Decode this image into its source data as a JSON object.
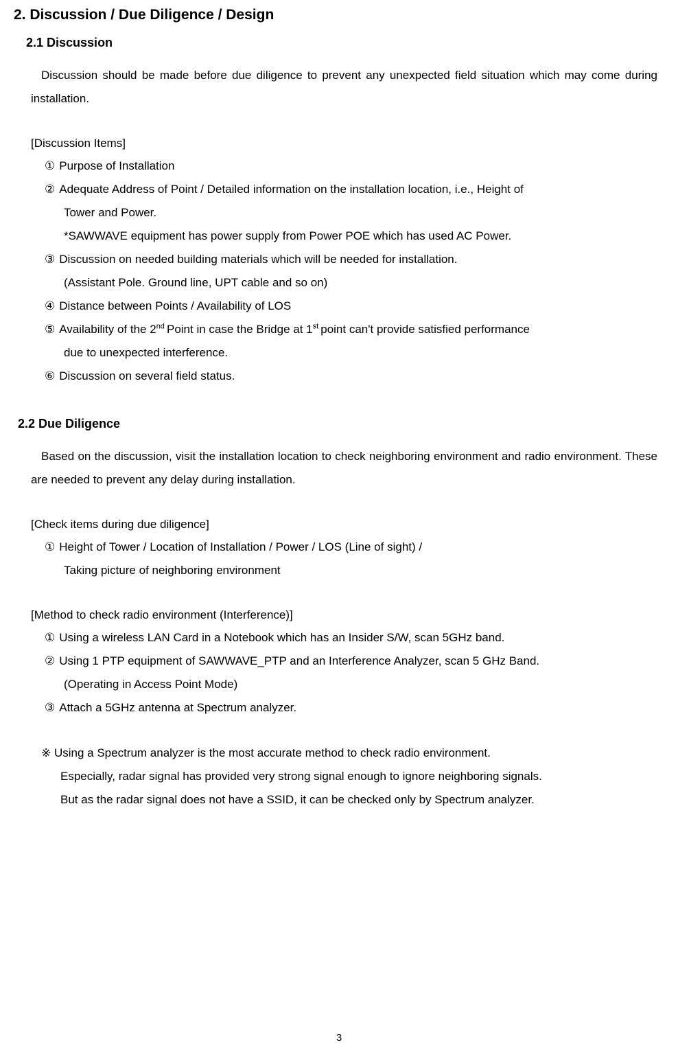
{
  "section": {
    "title": "2. Discussion / Due Diligence / Design"
  },
  "subsection1": {
    "title": "2.1 Discussion",
    "intro": "Discussion should be made before due diligence to prevent any unexpected field situation which may come during installation.",
    "list_heading": "[Discussion Items]",
    "items": {
      "m1": "①",
      "i1": "Purpose of Installation",
      "m2": "②",
      "i2": "Adequate Address of Point / Detailed information on the installation location, i.e., Height of",
      "i2b": "Tower and Power.",
      "i2c": "*SAWWAVE equipment has power supply from Power POE which has used AC Power.",
      "m3": "③",
      "i3": "Discussion on needed building materials which will be needed for installation.",
      "i3b": "(Assistant Pole. Ground line, UPT cable and so on)",
      "m4": "④",
      "i4": "Distance between Points / Availability of LOS",
      "m5": "⑤",
      "i5a": "Availability of the 2",
      "i5sup1": "nd ",
      "i5b": "Point in case the Bridge at 1",
      "i5sup2": "st ",
      "i5c": "point can't provide satisfied performance",
      "i5d": "due to unexpected interference.",
      "m6": "⑥",
      "i6": "Discussion on several field status."
    }
  },
  "subsection2": {
    "title": "2.2 Due Diligence",
    "intro": "Based on the discussion, visit the installation location to check neighboring environment and radio environment. These are needed to prevent any delay during installation.",
    "check_heading": "[Check items during due diligence]",
    "check": {
      "m1": "①",
      "c1": "Height of Tower / Location of Installation / Power / LOS (Line of sight) /",
      "c1b": "Taking picture of neighboring environment"
    },
    "method_heading": "[Method to check radio environment (Interference)]",
    "method": {
      "m1": "①",
      "r1": "Using a wireless LAN Card in a Notebook which has an Insider S/W, scan 5GHz band.",
      "m2": "②",
      "r2": "Using 1 PTP equipment of SAWWAVE_PTP and an Interference Analyzer, scan 5 GHz Band.",
      "r2b": "(Operating in Access Point Mode)",
      "m3": "③",
      "r3": "Attach a 5GHz antenna at Spectrum analyzer."
    },
    "note": {
      "n1": "※ Using a Spectrum analyzer is the most accurate method to check radio environment.",
      "n2": "Especially, radar signal has provided very strong signal enough to ignore neighboring signals.",
      "n3": "But as the radar signal does not have a SSID, it can be checked only by Spectrum analyzer."
    }
  },
  "page_number": "3",
  "colors": {
    "text": "#000000",
    "background": "#ffffff"
  },
  "typography": {
    "title_fontsize": 21,
    "subtitle_fontsize": 18,
    "body_fontsize": 17,
    "line_height": 2.0
  }
}
